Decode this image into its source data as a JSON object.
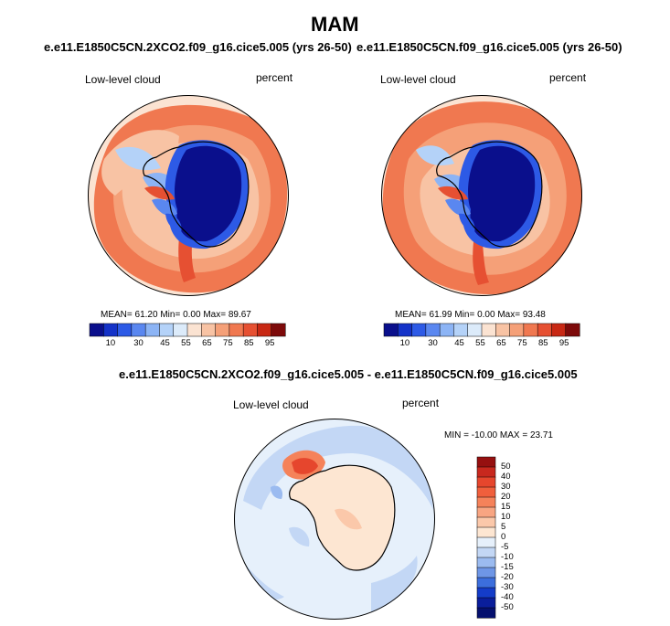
{
  "title": "MAM",
  "panels": [
    {
      "case": "e.e11.E1850C5CN.2XCO2.f09_g16.cice5.005 (yrs 26-50)",
      "left_label": "Low-level cloud",
      "right_label": "percent",
      "stats": {
        "mean_label": "MEAN=",
        "mean": "61.20",
        "min_label": "Min=",
        "min": "0.00",
        "max_label": "Max=",
        "max": "89.67"
      }
    },
    {
      "case": "e.e11.E1850C5CN.f09_g16.cice5.005 (yrs 26-50)",
      "left_label": "Low-level cloud",
      "right_label": "percent",
      "stats": {
        "mean_label": "MEAN=",
        "mean": "61.99",
        "min_label": "Min=",
        "min": "0.00",
        "max_label": "Max=",
        "max": "93.48"
      }
    }
  ],
  "colorbar_top": {
    "labels": [
      "10",
      "30",
      "45",
      "55",
      "65",
      "75",
      "85",
      "95"
    ],
    "colors": [
      "#0a0f8c",
      "#1432c8",
      "#2d5ae6",
      "#5a87f0",
      "#8cb4f5",
      "#b4d2f8",
      "#dcebfa",
      "#fbe3d2",
      "#f8c3a4",
      "#f5a078",
      "#f07850",
      "#e65032",
      "#c82814",
      "#7d0a0a"
    ]
  },
  "difference": {
    "title": "e.e11.E1850C5CN.2XCO2.f09_g16.cice5.005 - e.e11.E1850C5CN.f09_g16.cice5.005",
    "left_label": "Low-level cloud",
    "right_label": "percent",
    "stats": {
      "min_label": "MIN =",
      "min": "-10.00",
      "max_label": "MAX =",
      "max": "23.71"
    }
  },
  "colorbar_diff": {
    "labels": [
      "50",
      "40",
      "30",
      "20",
      "15",
      "10",
      "5",
      "0",
      "-5",
      "-10",
      "-15",
      "-20",
      "-30",
      "-40",
      "-50"
    ],
    "colors": [
      "#961010",
      "#c8281e",
      "#e6462d",
      "#f05f3c",
      "#f5825a",
      "#f8a582",
      "#fbc8aa",
      "#fde6d2",
      "#e6f0fb",
      "#c3d7f5",
      "#9bbbf0",
      "#6e96e6",
      "#3c6edc",
      "#143cc8",
      "#0a1e9b",
      "#05106e"
    ]
  }
}
